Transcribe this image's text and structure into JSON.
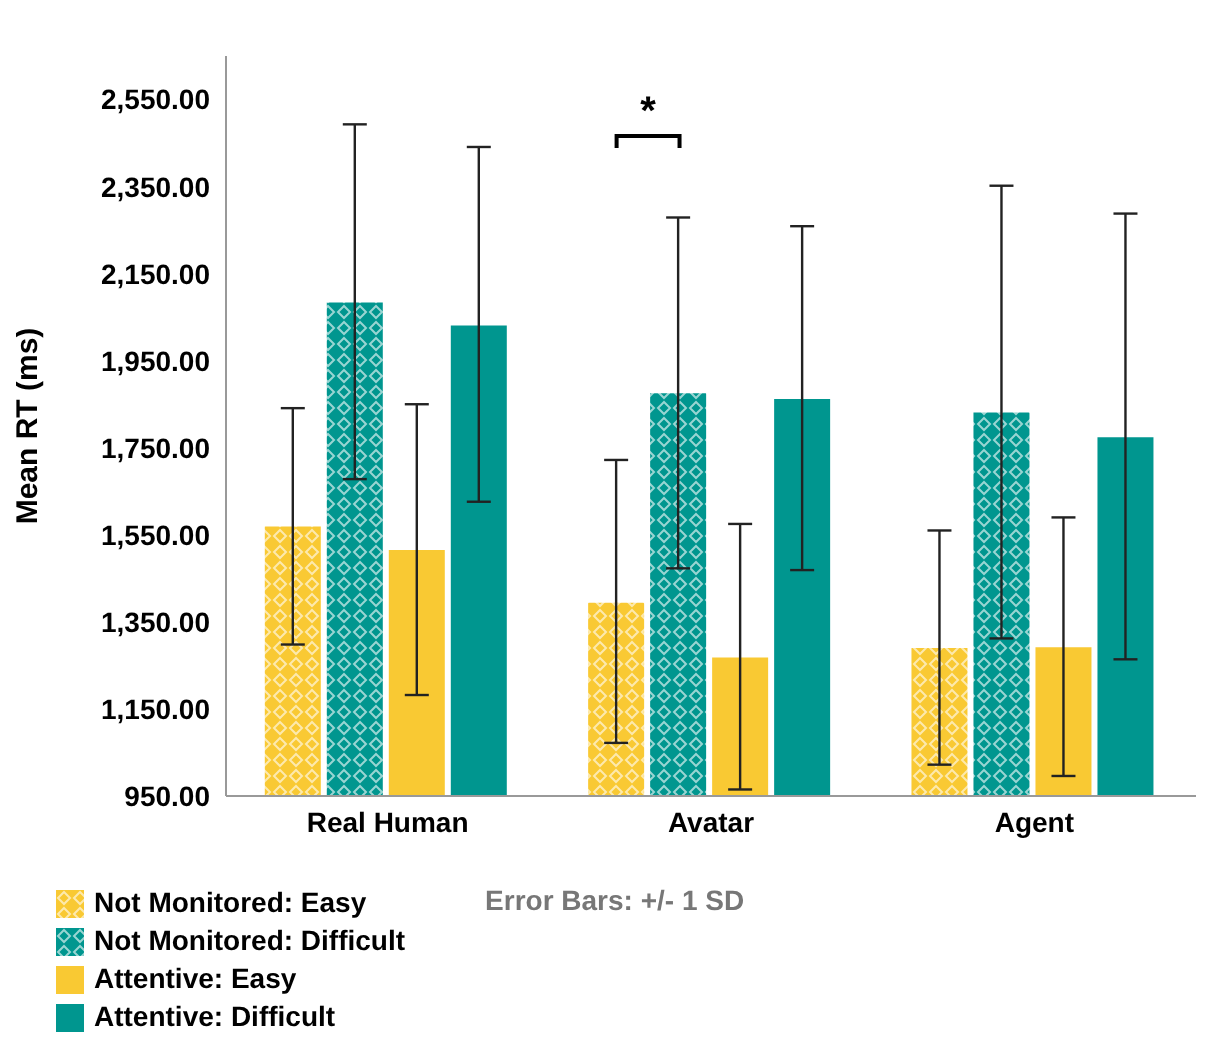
{
  "chart_data": {
    "type": "bar",
    "ylabel": "Mean RT (ms)",
    "categories": [
      "Real Human",
      "Avatar",
      "Agent"
    ],
    "series": [
      {
        "name": "Not Monitored: Easy",
        "color": "#f9c933",
        "values": [
          1569,
          1394,
          1290
        ],
        "errors": [
          [
            1298,
            1841
          ],
          [
            1072,
            1722
          ],
          [
            1022,
            1560
          ]
        ]
      },
      {
        "name": "Not Monitored: Difficult",
        "color": "#00968f",
        "values": [
          2084,
          1875,
          1831
        ],
        "errors": [
          [
            1678,
            2493
          ],
          [
            1473,
            2279
          ],
          [
            1312,
            2352
          ]
        ]
      },
      {
        "name": "Attentive: Easy",
        "color": "#f9c933",
        "values": [
          1515,
          1268,
          1292
        ],
        "errors": [
          [
            1182,
            1850
          ],
          [
            965,
            1575
          ],
          [
            996,
            1590
          ]
        ]
      },
      {
        "name": "Attentive: Difficult",
        "color": "#00968f",
        "values": [
          2031,
          1862,
          1774
        ],
        "errors": [
          [
            1626,
            2441
          ],
          [
            1469,
            2259
          ],
          [
            1264,
            2288
          ]
        ]
      }
    ],
    "ylim": [
      950,
      2650
    ],
    "yticks": [
      {
        "value": 950,
        "label": "950.00"
      },
      {
        "value": 1150,
        "label": "1,150.00"
      },
      {
        "value": 1350,
        "label": "1,350.00"
      },
      {
        "value": 1550,
        "label": "1,550.00"
      },
      {
        "value": 1750,
        "label": "1,750.00"
      },
      {
        "value": 1950,
        "label": "1,950.00"
      },
      {
        "value": 2150,
        "label": "2,150.00"
      },
      {
        "value": 2350,
        "label": "2,350.00"
      },
      {
        "value": 2550,
        "label": "2,550.00"
      }
    ],
    "grid": false,
    "legend": "bottom left",
    "annotations": [
      "*",
      "Error Bars: +/- 1 SD"
    ]
  }
}
